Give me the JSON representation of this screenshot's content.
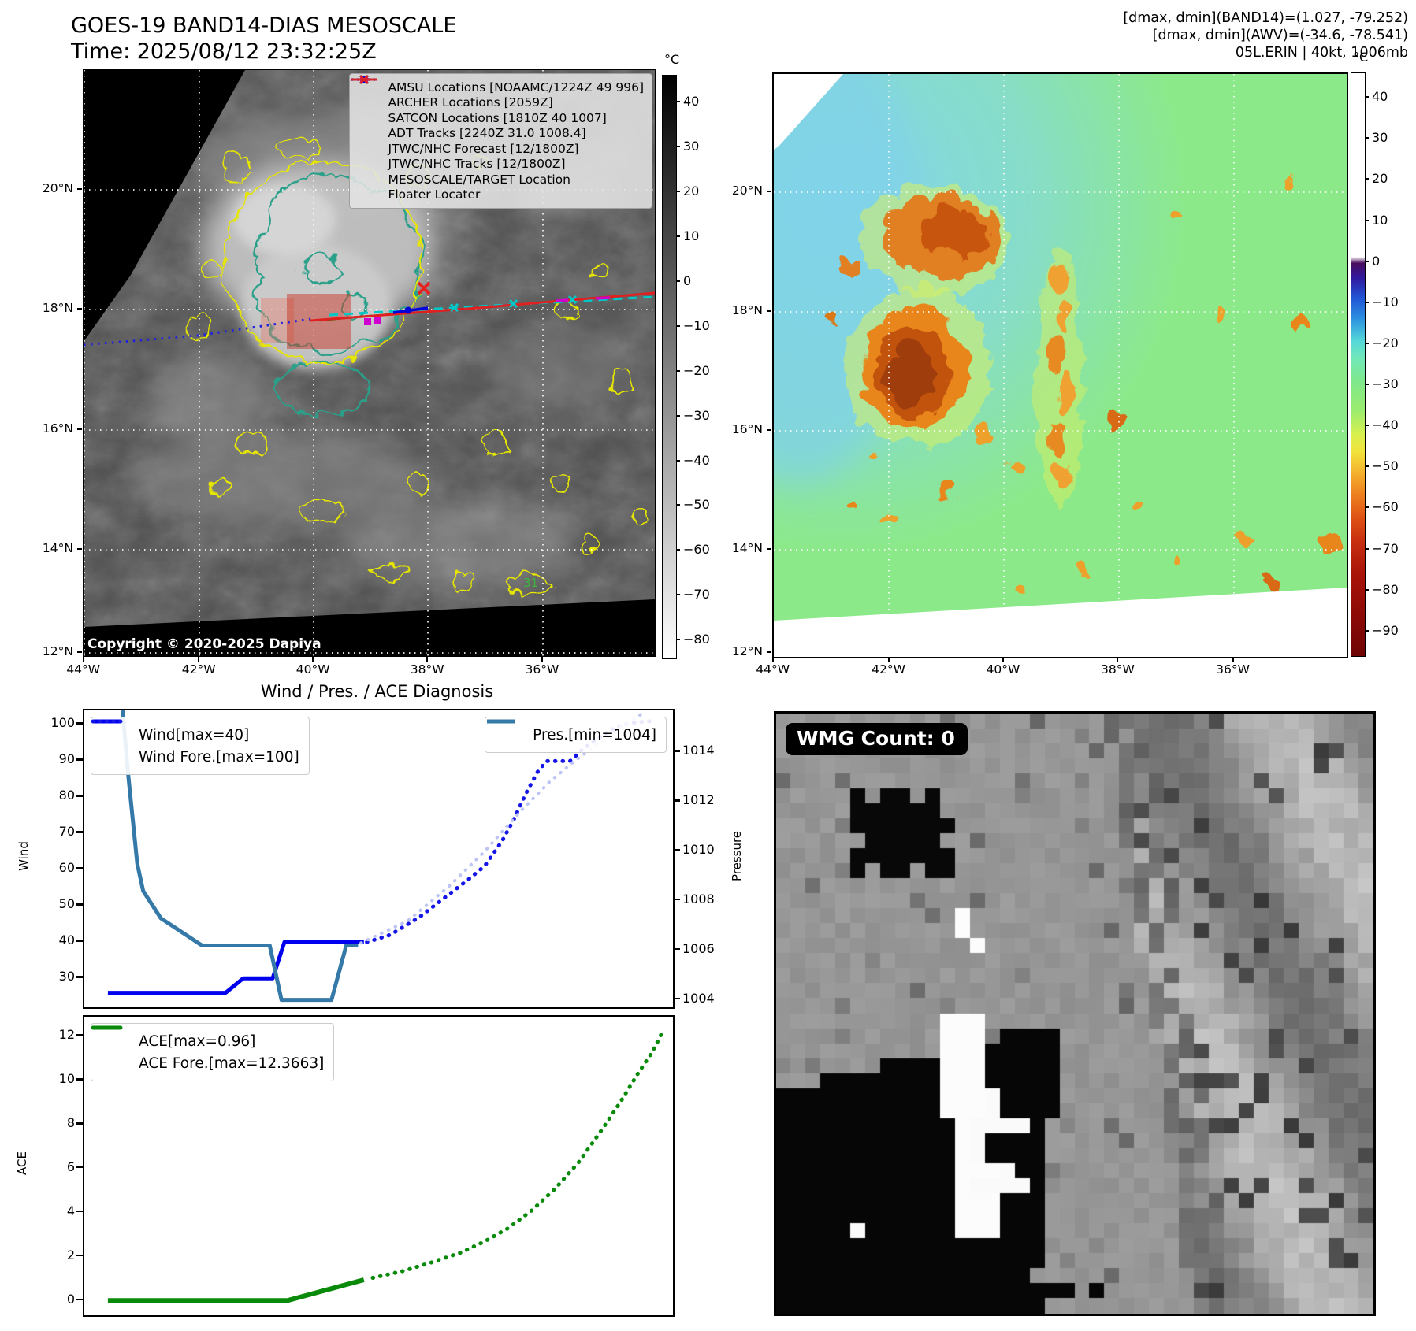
{
  "header": {
    "title_line1": "GOES-19 BAND14-DIAS MESOSCALE",
    "title_line2": "Time: 2025/08/12 23:32:25Z",
    "info_line1": "[dmax, dmin](BAND14)=(1.027, -79.252)",
    "info_line2": "[dmax, dmin](AWV)=(-34.6, -78.541)",
    "info_line3": "05L.ERIN | 40kt, 1006mb"
  },
  "band14_map": {
    "legend": [
      {
        "marker": "square",
        "color": "#cf00cf",
        "label": "AMSU Locations [NOAAMC/1224Z 49 996]"
      },
      {
        "marker": "square",
        "color": "#cf00cf",
        "label": "ARCHER Locations [2059Z]"
      },
      {
        "marker": "x",
        "color": "#00b8b8",
        "label": "SATCON Locations [1810Z 40 1007]"
      },
      {
        "marker": "line",
        "color": "#008000",
        "label": "ADT Tracks [2240Z 31.0 1008.4]"
      },
      {
        "marker": "dotted",
        "color": "#2222ee",
        "label": "JTWC/NHC Forecast [12/1800Z]"
      },
      {
        "marker": "line-dot",
        "color": "#0000dd",
        "label": "JTWC/NHC Tracks [12/1800Z]"
      },
      {
        "marker": "x",
        "color": "#e02020",
        "label": "MESOSCALE/TARGET Location"
      },
      {
        "marker": "line",
        "color": "#d62728",
        "label": "Floater Locater"
      }
    ],
    "copyright": "Copyright © 2020-2025 Dapiya",
    "contour_label": "31",
    "colorbar": {
      "unit": "°C",
      "ticks": [
        40,
        30,
        20,
        10,
        0,
        -10,
        -20,
        -30,
        -40,
        -50,
        -60,
        -70,
        -80
      ]
    },
    "lat_ticks": [
      "20°N",
      "18°N",
      "16°N",
      "14°N",
      "12°N"
    ],
    "lon_ticks": [
      "44°W",
      "42°W",
      "40°W",
      "38°W",
      "36°W"
    ]
  },
  "awv_map": {
    "colorbar": {
      "unit": "°C",
      "ticks": [
        40,
        30,
        20,
        10,
        0,
        -10,
        -20,
        -30,
        -40,
        -50,
        -60,
        -70,
        -80,
        -90
      ]
    },
    "lat_ticks": [
      "20°N",
      "18°N",
      "16°N",
      "14°N",
      "12°N"
    ],
    "lon_ticks": [
      "44°W",
      "42°W",
      "40°W",
      "38°W",
      "36°W"
    ]
  },
  "diagnosis": {
    "section_title": "Wind / Pres. / ACE Diagnosis"
  },
  "wmg_panel": {
    "count_label": "WMG Count: 0"
  },
  "chart_data": [
    {
      "id": "wind_pres",
      "type": "line",
      "ylabel_left": "Wind",
      "ylabel_right": "Pressure",
      "ylim_left": [
        22,
        104
      ],
      "yticks_left": [
        30,
        40,
        50,
        60,
        70,
        80,
        90,
        100
      ],
      "ylim_right": [
        1003.7,
        1015.7
      ],
      "yticks_right": [
        1004,
        1006,
        1008,
        1010,
        1012,
        1014
      ],
      "series": [
        {
          "name": "Wind[max=40]",
          "axis": "left",
          "style": "solid",
          "color": "#0000ee",
          "width": 5,
          "legend": "A",
          "points": [
            [
              0.04,
              26
            ],
            [
              0.24,
              26
            ],
            [
              0.27,
              30
            ],
            [
              0.32,
              30
            ],
            [
              0.34,
              40
            ],
            [
              0.475,
              40
            ]
          ]
        },
        {
          "name": "Wind Fore.[max=100]",
          "axis": "left",
          "style": "dotted",
          "color": "#1515e8",
          "width": 5,
          "legend": "A",
          "points": [
            [
              0.48,
              40
            ],
            [
              0.52,
              42
            ],
            [
              0.57,
              47
            ],
            [
              0.61,
              52
            ],
            [
              0.65,
              57
            ],
            [
              0.68,
              61
            ],
            [
              0.71,
              68
            ],
            [
              0.73,
              74
            ],
            [
              0.75,
              81
            ],
            [
              0.77,
              87
            ],
            [
              0.785,
              90
            ],
            [
              0.825,
              90
            ],
            [
              0.845,
              93
            ],
            [
              0.87,
              96
            ],
            [
              0.9,
              99
            ],
            [
              0.925,
              100.5
            ],
            [
              0.96,
              101
            ]
          ]
        },
        {
          "name": "Pres.[min=1004]",
          "axis": "right",
          "style": "solid",
          "color": "#3579a8",
          "width": 5,
          "legend": "B",
          "points": [
            [
              0.065,
              1015.7
            ],
            [
              0.075,
              1013
            ],
            [
              0.09,
              1009.5
            ],
            [
              0.1,
              1008.4
            ],
            [
              0.13,
              1007.3
            ],
            [
              0.2,
              1006.2
            ],
            [
              0.315,
              1006.2
            ],
            [
              0.335,
              1004
            ],
            [
              0.42,
              1004
            ],
            [
              0.445,
              1006.2
            ],
            [
              0.465,
              1006.2
            ]
          ]
        },
        {
          "name": "Pres. Fore.",
          "axis": "right",
          "style": "dotted",
          "color": "#bcc4f4",
          "width": 4,
          "legend": "none",
          "points": [
            [
              0.47,
              1006.3
            ],
            [
              0.55,
              1007.2
            ],
            [
              0.62,
              1008.6
            ],
            [
              0.68,
              1010
            ],
            [
              0.74,
              1011.6
            ],
            [
              0.79,
              1012.8
            ],
            [
              0.83,
              1013.6
            ],
            [
              0.87,
              1014.3
            ],
            [
              0.91,
              1015
            ],
            [
              0.95,
              1015.6
            ]
          ]
        }
      ]
    },
    {
      "id": "ace",
      "type": "line",
      "ylabel_left": "ACE",
      "ylim_left": [
        -0.65,
        12.9
      ],
      "yticks_left": [
        0,
        2,
        4,
        6,
        8,
        10,
        12
      ],
      "series": [
        {
          "name": "ACE[max=0.96]",
          "axis": "left",
          "style": "solid",
          "color": "#0a8a0a",
          "width": 6,
          "legend": "A",
          "points": [
            [
              0.04,
              0.02
            ],
            [
              0.345,
              0.02
            ],
            [
              0.475,
              0.96
            ]
          ]
        },
        {
          "name": "ACE Fore.[max=12.3663]",
          "axis": "left",
          "style": "dotted",
          "color": "#0a8a0a",
          "width": 5,
          "legend": "A",
          "points": [
            [
              0.49,
              1.05
            ],
            [
              0.54,
              1.35
            ],
            [
              0.59,
              1.75
            ],
            [
              0.64,
              2.2
            ],
            [
              0.68,
              2.7
            ],
            [
              0.72,
              3.3
            ],
            [
              0.76,
              4.1
            ],
            [
              0.8,
              5.1
            ],
            [
              0.84,
              6.3
            ],
            [
              0.88,
              7.8
            ],
            [
              0.91,
              9.0
            ],
            [
              0.94,
              10.3
            ],
            [
              0.965,
              11.3
            ],
            [
              0.985,
              12.36
            ]
          ]
        }
      ]
    }
  ]
}
